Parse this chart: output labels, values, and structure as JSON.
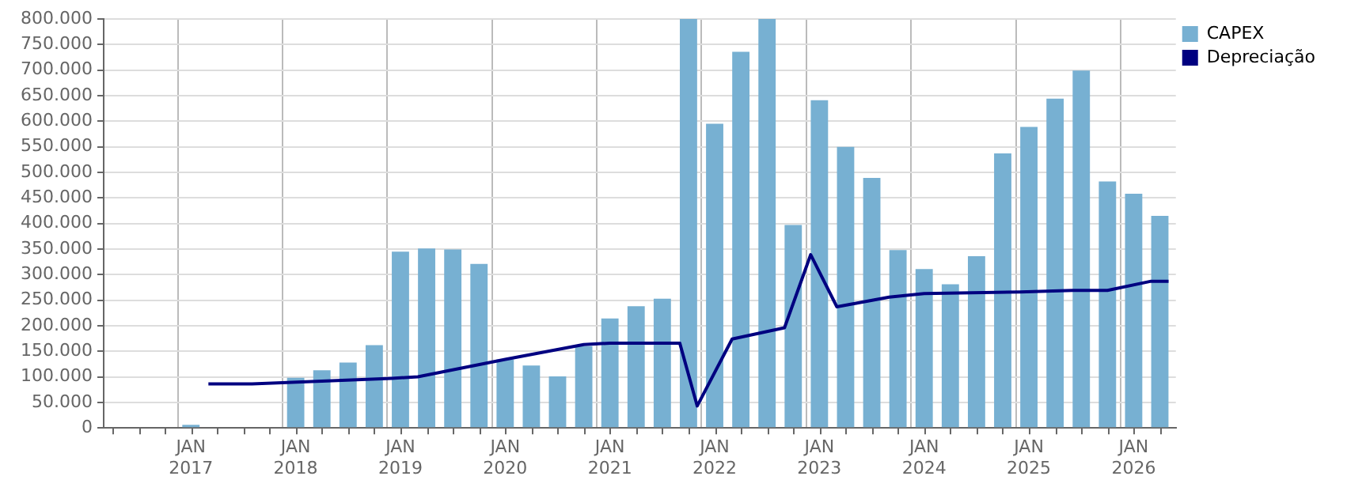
{
  "chart_data": {
    "type": "bar",
    "legend": "right",
    "grid": true,
    "xlim": [
      "2016-03",
      "2026-05-26"
    ],
    "xticks": [
      {
        "value": "2016-04",
        "label": null
      },
      {
        "value": "2016-07",
        "label": null
      },
      {
        "value": "2016-10",
        "label": null
      },
      {
        "value": "2017-01",
        "label": "JAN 2017"
      },
      {
        "value": "2017-04",
        "label": null
      },
      {
        "value": "2017-07",
        "label": null
      },
      {
        "value": "2017-10",
        "label": null
      },
      {
        "value": "2018-01",
        "label": "JAN 2018"
      },
      {
        "value": "2018-04",
        "label": null
      },
      {
        "value": "2018-07",
        "label": null
      },
      {
        "value": "2018-10",
        "label": null
      },
      {
        "value": "2019-01",
        "label": "JAN 2019"
      },
      {
        "value": "2019-04",
        "label": null
      },
      {
        "value": "2019-07",
        "label": null
      },
      {
        "value": "2019-10",
        "label": null
      },
      {
        "value": "2020-01",
        "label": "JAN 2020"
      },
      {
        "value": "2020-04",
        "label": null
      },
      {
        "value": "2020-07",
        "label": null
      },
      {
        "value": "2020-10",
        "label": null
      },
      {
        "value": "2021-01",
        "label": "JAN 2021"
      },
      {
        "value": "2021-04",
        "label": null
      },
      {
        "value": "2021-07",
        "label": null
      },
      {
        "value": "2021-10",
        "label": null
      },
      {
        "value": "2022-01",
        "label": "JAN 2022"
      },
      {
        "value": "2022-04",
        "label": null
      },
      {
        "value": "2022-07",
        "label": null
      },
      {
        "value": "2022-10",
        "label": null
      },
      {
        "value": "2023-01",
        "label": "JAN 2023"
      },
      {
        "value": "2023-04",
        "label": null
      },
      {
        "value": "2023-07",
        "label": null
      },
      {
        "value": "2023-10",
        "label": null
      },
      {
        "value": "2024-01",
        "label": "JAN 2024"
      },
      {
        "value": "2024-04",
        "label": null
      },
      {
        "value": "2024-07",
        "label": null
      },
      {
        "value": "2024-10",
        "label": null
      },
      {
        "value": "2025-01",
        "label": "JAN 2025"
      },
      {
        "value": "2025-04",
        "label": null
      },
      {
        "value": "2025-07",
        "label": null
      },
      {
        "value": "2025-10",
        "label": null
      },
      {
        "value": "2026-01",
        "label": "JAN 2026"
      },
      {
        "value": "2026-04",
        "label": null
      }
    ],
    "ylim": [
      0,
      800000
    ],
    "yticks": [
      0,
      {
        "value": 50000,
        "label": "50.000"
      },
      {
        "value": 100000,
        "label": "100.000"
      },
      {
        "value": 150000,
        "label": "150.000"
      },
      {
        "value": 200000,
        "label": "200.000"
      },
      {
        "value": 250000,
        "label": "250.000"
      },
      {
        "value": 300000,
        "label": "300.000"
      },
      {
        "value": 350000,
        "label": "350.000"
      },
      {
        "value": 400000,
        "label": "400.000"
      },
      {
        "value": 450000,
        "label": "450.000"
      },
      {
        "value": 500000,
        "label": "500.000"
      },
      {
        "value": 550000,
        "label": "550.000"
      },
      {
        "value": 600000,
        "label": "600.000"
      },
      {
        "value": 650000,
        "label": "650.000"
      },
      {
        "value": 700000,
        "label": "700.000"
      },
      {
        "value": 750000,
        "label": "750.000"
      },
      {
        "value": 800000,
        "label": "800.000"
      }
    ],
    "series": [
      {
        "name": "CAPEX",
        "color": "#77b0d2",
        "x": [
          "2017-01",
          "2018-01",
          "2018-04",
          "2018-07",
          "2018-10",
          "2019-01",
          "2019-04",
          "2019-07",
          "2019-10",
          "2020-01",
          "2020-04",
          "2020-07",
          "2020-10",
          "2021-01",
          "2021-04",
          "2021-07",
          "2021-10",
          "2022-01",
          "2022-04",
          "2022-07",
          "2022-10",
          "2023-01",
          "2023-04",
          "2023-07",
          "2023-10",
          "2024-01",
          "2024-04",
          "2024-07",
          "2024-10",
          "2025-01",
          "2025-04",
          "2025-07",
          "2025-10",
          "2026-01",
          "2026-04"
        ],
        "values": [
          6000,
          98000,
          113000,
          128000,
          162000,
          345000,
          351000,
          349000,
          321000,
          134000,
          122000,
          101000,
          160000,
          214000,
          238000,
          253000,
          800000,
          595000,
          736000,
          800000,
          397000,
          641000,
          550000,
          489000,
          348000,
          311000,
          281000,
          336000,
          537000,
          589000,
          644000,
          699000,
          482000,
          458000,
          415000
        ]
      },
      {
        "name": "Depreciação",
        "type": "line",
        "color": "#000080",
        "x": [
          "2017-03",
          "2017-08",
          "2018-12",
          "2019-03",
          "2020-01",
          "2020-10",
          "2021-01",
          "2021-09",
          "2021-11",
          "2022-03",
          "2022-09",
          "2022-12",
          "2023-03",
          "2023-09",
          "2024-01",
          "2024-12",
          "2025-06",
          "2025-10",
          "2026-03",
          "2026-05"
        ],
        "values": [
          86000,
          86000,
          97000,
          100000,
          134000,
          163000,
          166000,
          166000,
          43000,
          174000,
          196000,
          339000,
          237000,
          256000,
          263000,
          266000,
          269000,
          269000,
          287000,
          287000
        ]
      }
    ]
  }
}
